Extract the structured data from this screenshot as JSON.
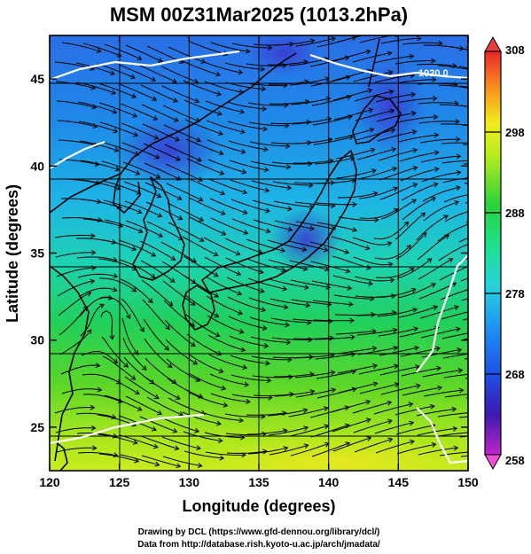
{
  "chart_data": {
    "type": "heatmap",
    "title": "MSM 00Z31Mar2025 (1013.2hPa)",
    "xlabel": "Longitude (degrees)",
    "ylabel": "Latitude  (degrees)",
    "xlim": [
      120,
      150
    ],
    "ylim": [
      22.5,
      47.5
    ],
    "x_ticks": [
      "120",
      "125",
      "130",
      "135",
      "140",
      "145",
      "150"
    ],
    "y_ticks": [
      "25",
      "30",
      "35",
      "40",
      "45"
    ],
    "grid": true,
    "overlay": "streamlines",
    "contour_labels": [
      "1020.0"
    ],
    "colorbar": {
      "min": 258,
      "max": 308,
      "tick_labels": [
        "258",
        "268",
        "278",
        "288",
        "298",
        "308"
      ],
      "placement": "right"
    },
    "footer": [
      "Drawing by DCL (https://www.gfd-dennou.org/library/dcl/)",
      "Data from http://database.rish.kyoto-u.ac.jp/arch/jmadata/"
    ]
  }
}
